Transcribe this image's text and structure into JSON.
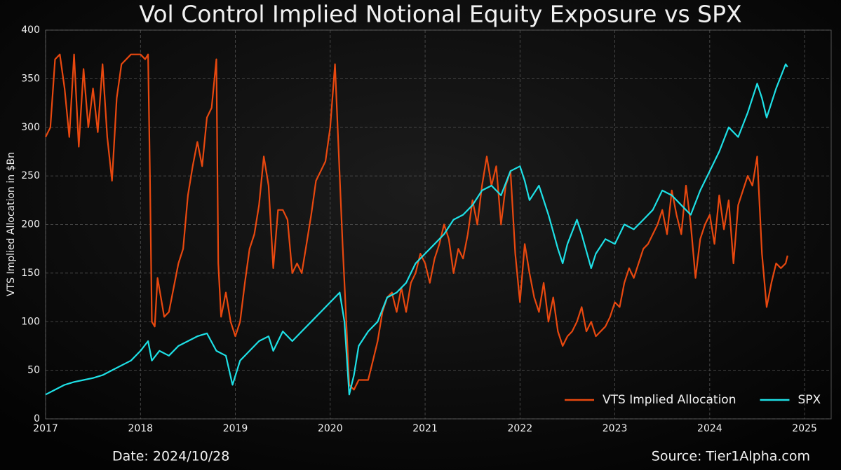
{
  "chart_data": {
    "type": "line",
    "title": "Vol Control Implied Notional Equity Exposure vs SPX",
    "ylabel": "VTS Implied Allocation in $Bn",
    "date_note": "Date: 2024/10/28",
    "source_note": "Source: Tier1Alpha.com",
    "xlim": [
      2017,
      2025.28
    ],
    "xticks": [
      2017,
      2018,
      2019,
      2020,
      2021,
      2022,
      2023,
      2024,
      2025
    ],
    "ylim": [
      0,
      400
    ],
    "yticks": [
      0,
      50,
      100,
      150,
      200,
      250,
      300,
      350,
      400
    ],
    "grid": true,
    "legend": "lower right",
    "series": [
      {
        "name": "VTS Implied Allocation",
        "color": "#e8480f",
        "x": [
          2017.0,
          2017.05,
          2017.1,
          2017.15,
          2017.2,
          2017.25,
          2017.3,
          2017.35,
          2017.4,
          2017.45,
          2017.5,
          2017.55,
          2017.6,
          2017.65,
          2017.7,
          2017.75,
          2017.8,
          2017.9,
          2018.0,
          2018.05,
          2018.08,
          2018.1,
          2018.12,
          2018.15,
          2018.18,
          2018.25,
          2018.3,
          2018.35,
          2018.4,
          2018.45,
          2018.5,
          2018.55,
          2018.6,
          2018.65,
          2018.7,
          2018.75,
          2018.8,
          2018.82,
          2018.85,
          2018.9,
          2018.95,
          2019.0,
          2019.05,
          2019.1,
          2019.15,
          2019.2,
          2019.25,
          2019.3,
          2019.35,
          2019.4,
          2019.45,
          2019.5,
          2019.55,
          2019.6,
          2019.65,
          2019.7,
          2019.75,
          2019.8,
          2019.85,
          2019.9,
          2019.95,
          2020.0,
          2020.05,
          2020.1,
          2020.13,
          2020.16,
          2020.2,
          2020.25,
          2020.3,
          2020.4,
          2020.45,
          2020.5,
          2020.55,
          2020.6,
          2020.65,
          2020.7,
          2020.75,
          2020.8,
          2020.85,
          2020.9,
          2020.95,
          2021.0,
          2021.05,
          2021.1,
          2021.15,
          2021.2,
          2021.25,
          2021.3,
          2021.35,
          2021.4,
          2021.45,
          2021.5,
          2021.55,
          2021.6,
          2021.65,
          2021.7,
          2021.75,
          2021.8,
          2021.85,
          2021.9,
          2021.95,
          2022.0,
          2022.05,
          2022.1,
          2022.15,
          2022.2,
          2022.25,
          2022.3,
          2022.35,
          2022.4,
          2022.45,
          2022.5,
          2022.55,
          2022.6,
          2022.65,
          2022.7,
          2022.75,
          2022.8,
          2022.85,
          2022.9,
          2022.95,
          2023.0,
          2023.05,
          2023.1,
          2023.15,
          2023.2,
          2023.25,
          2023.3,
          2023.35,
          2023.4,
          2023.45,
          2023.5,
          2023.55,
          2023.6,
          2023.65,
          2023.7,
          2023.75,
          2023.8,
          2023.85,
          2023.9,
          2023.95,
          2024.0,
          2024.05,
          2024.1,
          2024.15,
          2024.2,
          2024.25,
          2024.3,
          2024.35,
          2024.4,
          2024.45,
          2024.5,
          2024.55,
          2024.6,
          2024.65,
          2024.7,
          2024.75,
          2024.8,
          2024.82
        ],
        "values": [
          290,
          300,
          370,
          375,
          340,
          290,
          375,
          280,
          360,
          300,
          340,
          295,
          365,
          290,
          245,
          330,
          365,
          375,
          375,
          370,
          375,
          250,
          100,
          95,
          145,
          105,
          110,
          135,
          160,
          175,
          230,
          260,
          285,
          260,
          310,
          320,
          370,
          160,
          105,
          130,
          100,
          85,
          100,
          140,
          175,
          190,
          220,
          270,
          240,
          155,
          215,
          215,
          205,
          150,
          160,
          150,
          180,
          210,
          245,
          255,
          265,
          300,
          365,
          250,
          180,
          120,
          35,
          30,
          40,
          40,
          60,
          80,
          110,
          125,
          130,
          110,
          135,
          110,
          140,
          150,
          170,
          160,
          140,
          165,
          180,
          200,
          185,
          150,
          175,
          165,
          190,
          225,
          200,
          240,
          270,
          240,
          260,
          200,
          240,
          255,
          170,
          120,
          180,
          150,
          125,
          110,
          140,
          100,
          125,
          90,
          75,
          85,
          90,
          100,
          115,
          90,
          100,
          85,
          90,
          95,
          105,
          120,
          115,
          140,
          155,
          145,
          160,
          175,
          180,
          190,
          200,
          215,
          190,
          235,
          210,
          190,
          240,
          200,
          145,
          185,
          200,
          210,
          180,
          230,
          195,
          225,
          160,
          220,
          235,
          250,
          240,
          270,
          170,
          115,
          140,
          160,
          155,
          160,
          168
        ]
      },
      {
        "name": "SPX",
        "color": "#1ee0e6",
        "x": [
          2017.0,
          2017.1,
          2017.2,
          2017.3,
          2017.4,
          2017.5,
          2017.6,
          2017.7,
          2017.8,
          2017.9,
          2018.0,
          2018.08,
          2018.12,
          2018.2,
          2018.3,
          2018.4,
          2018.5,
          2018.6,
          2018.7,
          2018.8,
          2018.9,
          2018.97,
          2019.05,
          2019.15,
          2019.25,
          2019.35,
          2019.4,
          2019.5,
          2019.6,
          2019.7,
          2019.8,
          2019.9,
          2020.0,
          2020.1,
          2020.15,
          2020.2,
          2020.25,
          2020.3,
          2020.4,
          2020.5,
          2020.6,
          2020.7,
          2020.8,
          2020.9,
          2021.0,
          2021.1,
          2021.2,
          2021.3,
          2021.4,
          2021.5,
          2021.6,
          2021.7,
          2021.8,
          2021.9,
          2022.0,
          2022.05,
          2022.1,
          2022.2,
          2022.3,
          2022.4,
          2022.45,
          2022.5,
          2022.6,
          2022.65,
          2022.75,
          2022.8,
          2022.9,
          2023.0,
          2023.1,
          2023.2,
          2023.3,
          2023.4,
          2023.5,
          2023.6,
          2023.7,
          2023.8,
          2023.9,
          2024.0,
          2024.1,
          2024.2,
          2024.3,
          2024.4,
          2024.5,
          2024.55,
          2024.6,
          2024.7,
          2024.8,
          2024.82
        ],
        "values": [
          25,
          30,
          35,
          38,
          40,
          42,
          45,
          50,
          55,
          60,
          70,
          80,
          60,
          70,
          65,
          75,
          80,
          85,
          88,
          70,
          65,
          35,
          60,
          70,
          80,
          85,
          70,
          90,
          80,
          90,
          100,
          110,
          120,
          130,
          100,
          25,
          45,
          75,
          90,
          100,
          125,
          130,
          140,
          160,
          170,
          180,
          190,
          205,
          210,
          220,
          235,
          240,
          230,
          255,
          260,
          245,
          225,
          240,
          210,
          175,
          160,
          180,
          205,
          190,
          155,
          170,
          185,
          180,
          200,
          195,
          205,
          215,
          235,
          230,
          220,
          210,
          235,
          255,
          275,
          300,
          290,
          315,
          345,
          330,
          310,
          340,
          365,
          362
        ]
      }
    ]
  }
}
